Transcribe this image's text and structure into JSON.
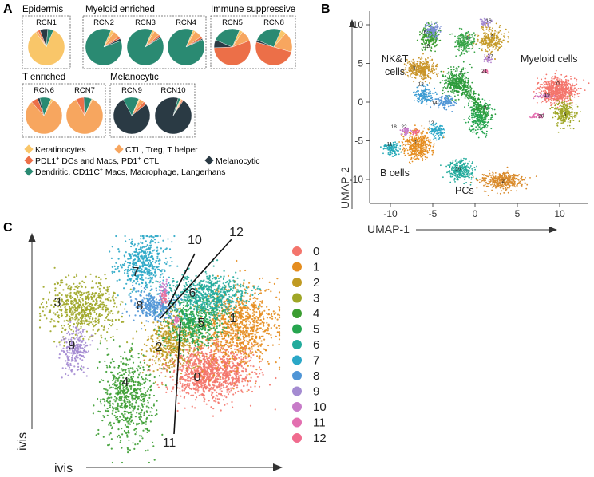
{
  "panel_a": {
    "letter": "A",
    "groups": [
      {
        "title": "Epidermis",
        "pies": [
          {
            "label": "RCN1",
            "slices": [
              0.84,
              0.02,
              0.02,
              0.07,
              0.05
            ]
          }
        ]
      },
      {
        "title": "Myeloid enriched",
        "pies": [
          {
            "label": "RCN2",
            "slices": [
              0.03,
              0.06,
              0.02,
              0.02,
              0.87
            ]
          },
          {
            "label": "RCN3",
            "slices": [
              0.02,
              0.05,
              0.02,
              0.01,
              0.9
            ]
          },
          {
            "label": "RCN4",
            "slices": [
              0.02,
              0.07,
              0.02,
              0.01,
              0.88
            ]
          }
        ]
      },
      {
        "title": "Immune suppressive",
        "pies": [
          {
            "label": "RCN5",
            "slices": [
              0.03,
              0.1,
              0.55,
              0.07,
              0.25
            ]
          },
          {
            "label": "RCN8",
            "slices": [
              0.05,
              0.18,
              0.5,
              0.02,
              0.25
            ]
          }
        ]
      },
      {
        "title": "T enriched",
        "pies": [
          {
            "label": "RCN6",
            "slices": [
              0.02,
              0.8,
              0.06,
              0.02,
              0.1
            ]
          },
          {
            "label": "RCN7",
            "slices": [
              0.01,
              0.85,
              0.07,
              0.01,
              0.06
            ]
          }
        ]
      },
      {
        "title": "Melanocytic",
        "pies": [
          {
            "label": "RCN9",
            "slices": [
              0.01,
              0.04,
              0.03,
              0.78,
              0.14
            ]
          },
          {
            "label": "RCN10",
            "slices": [
              0.01,
              0.01,
              0.01,
              0.95,
              0.02
            ]
          }
        ]
      }
    ],
    "legend": [
      {
        "label": "Keratinocytes",
        "color": "#f9c669"
      },
      {
        "label": "CTL, Treg, T helper",
        "color": "#f7a65f"
      },
      {
        "label": "PDL1",
        "sup": "+",
        "label2": " DCs and Macs, PD1",
        "sup2": "+",
        "label3": " CTL",
        "color": "#ec6f48"
      },
      {
        "label": "Melanocytic",
        "color": "#2a3a44"
      },
      {
        "label": "Dendritic, CD11C",
        "sup": "+",
        "label2": " Macs, Macrophage, Langerhans",
        "color": "#2a8a72"
      }
    ]
  },
  "panel_b": {
    "letter": "B",
    "xlabel": "UMAP-1",
    "ylabel": "UMAP-2",
    "xticks": [
      "-10",
      "-5",
      "0",
      "5",
      "10"
    ],
    "yticks": [
      "10",
      "5",
      "0",
      "-5",
      "-10"
    ],
    "annotations": [
      "NK&T",
      "cells",
      "Myeloid cells",
      "B cells",
      "PCs"
    ],
    "cluster_labels": [
      "0",
      "1",
      "2",
      "3",
      "4",
      "5",
      "6",
      "7",
      "8",
      "9",
      "10",
      "11",
      "12",
      "13",
      "14",
      "15",
      "16",
      "17",
      "18",
      "19",
      "20",
      "21",
      "22"
    ]
  },
  "panel_c": {
    "letter": "C",
    "xlabel": "ivis",
    "ylabel": "ivis",
    "legend": [
      {
        "label": "0",
        "color": "#f4756c"
      },
      {
        "label": "1",
        "color": "#e58d1f"
      },
      {
        "label": "2",
        "color": "#c09a22"
      },
      {
        "label": "3",
        "color": "#9fa626"
      },
      {
        "label": "4",
        "color": "#3b9d31"
      },
      {
        "label": "5",
        "color": "#26a54f"
      },
      {
        "label": "6",
        "color": "#22ab9c"
      },
      {
        "label": "7",
        "color": "#2aa7c7"
      },
      {
        "label": "8",
        "color": "#4f95d6"
      },
      {
        "label": "9",
        "color": "#a48bd1"
      },
      {
        "label": "10",
        "color": "#c77bc8"
      },
      {
        "label": "11",
        "color": "#e36fb0"
      },
      {
        "label": "12",
        "color": "#f06b8e"
      }
    ],
    "cluster_labels": [
      "0",
      "1",
      "2",
      "3",
      "4",
      "5",
      "6",
      "7",
      "8",
      "9",
      "10",
      "11",
      "12"
    ]
  }
}
